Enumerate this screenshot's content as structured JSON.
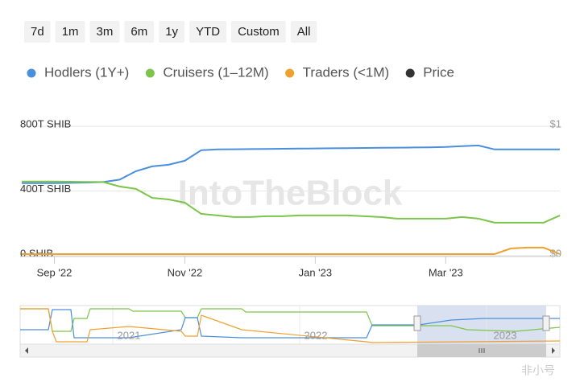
{
  "range_buttons": [
    "7d",
    "1m",
    "3m",
    "6m",
    "1y",
    "YTD",
    "Custom",
    "All"
  ],
  "watermark": "IntoTheBlock",
  "corner_mark": "非小号",
  "chart_data": {
    "type": "line",
    "categories": [
      null,
      null,
      "Sep '22",
      null,
      null,
      null,
      null,
      null,
      null,
      null,
      "Nov '22",
      null,
      null,
      null,
      null,
      null,
      null,
      null,
      "Jan '23",
      null,
      null,
      null,
      null,
      null,
      null,
      null,
      "Mar '23",
      null,
      null,
      null,
      null,
      null,
      null,
      null
    ],
    "series": [
      {
        "name": "Hodlers (1Y+)",
        "color": "#4a8fdc",
        "values": [
          448,
          448,
          448,
          450,
          452,
          455,
          470,
          522,
          552,
          562,
          587,
          652,
          657,
          658,
          659,
          660,
          661,
          662,
          663,
          664,
          665,
          666,
          667,
          668,
          669,
          670,
          672,
          677,
          681,
          657,
          657,
          657,
          657,
          657
        ]
      },
      {
        "name": "Cruisers (1–12M)",
        "color": "#7cc54a",
        "values": [
          458,
          458,
          458,
          457,
          456,
          455,
          428,
          413,
          358,
          348,
          328,
          259,
          249,
          239,
          239,
          244,
          244,
          249,
          249,
          249,
          249,
          244,
          239,
          229,
          229,
          229,
          229,
          239,
          229,
          204,
          204,
          204,
          204,
          249
        ]
      },
      {
        "name": "Traders (<1M)",
        "color": "#f0a030",
        "values": [
          10,
          10,
          10,
          10,
          10,
          10,
          10,
          10,
          10,
          10,
          10,
          10,
          10,
          10,
          10,
          10,
          10,
          10,
          10,
          10,
          10,
          10,
          10,
          10,
          10,
          10,
          10,
          10,
          10,
          10,
          45,
          50,
          50,
          10
        ]
      },
      {
        "name": "Price",
        "color": "#333333",
        "axis": "y2",
        "values": [
          null,
          null,
          null,
          null,
          null,
          null,
          null,
          null,
          null,
          null,
          null,
          null,
          null,
          null,
          null,
          null,
          null,
          null,
          null,
          null,
          null,
          null,
          null,
          null,
          null,
          null,
          null,
          null,
          null,
          null,
          null,
          null,
          null,
          null
        ]
      }
    ],
    "ylim": [
      0,
      800
    ],
    "yticks": [
      {
        "value": 0,
        "label": "0 SHIB"
      },
      {
        "value": 400,
        "label": "400T SHIB"
      },
      {
        "value": 800,
        "label": "800T SHIB"
      }
    ],
    "y2lim": [
      0,
      1
    ],
    "y2ticks": [
      {
        "value": 0,
        "label": "$0"
      },
      {
        "value": 1,
        "label": "$1"
      }
    ],
    "grid": true,
    "navigator": {
      "labels": [
        "2021",
        "2022",
        "2023"
      ]
    }
  }
}
